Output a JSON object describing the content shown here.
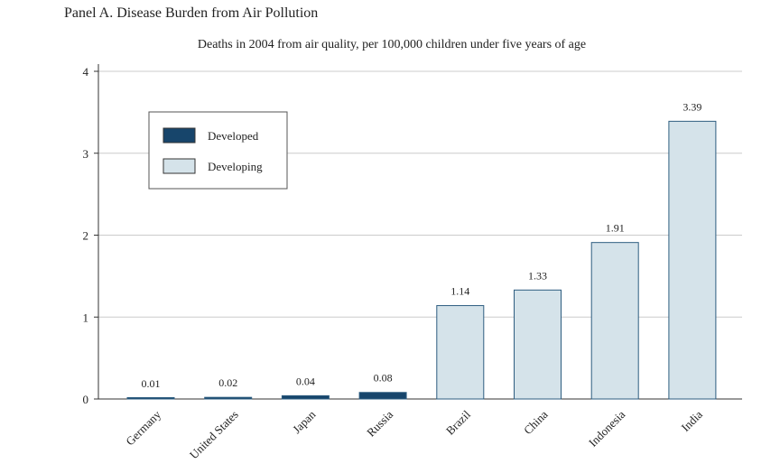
{
  "panel_title": "Panel A. Disease Burden from Air Pollution",
  "chart_data": {
    "type": "bar",
    "title": "Deaths in 2004 from air quality, per 100,000 children under five years of age",
    "xlabel": "",
    "ylabel": "",
    "ylim": [
      0,
      4
    ],
    "yticks": [
      0,
      1,
      2,
      3,
      4
    ],
    "grid": true,
    "legend_position": "top-left",
    "categories": [
      "Germany",
      "United States",
      "Japan",
      "Russia",
      "Brazil",
      "China",
      "Indonesia",
      "India"
    ],
    "values": [
      0.01,
      0.02,
      0.04,
      0.08,
      1.14,
      1.33,
      1.91,
      3.39
    ],
    "groups": [
      "Developed",
      "Developed",
      "Developed",
      "Developed",
      "Developing",
      "Developing",
      "Developing",
      "Developing"
    ],
    "value_labels": [
      "0.01",
      "0.02",
      "0.04",
      "0.08",
      "1.14",
      "1.33",
      "1.91",
      "3.39"
    ],
    "legend": [
      {
        "name": "Developed",
        "color": "#17456b"
      },
      {
        "name": "Developing",
        "color": "#d5e3ea"
      }
    ],
    "colors": {
      "bar_edge": "#2e5d80",
      "grid": "#cccccc",
      "axis": "#333333"
    }
  }
}
